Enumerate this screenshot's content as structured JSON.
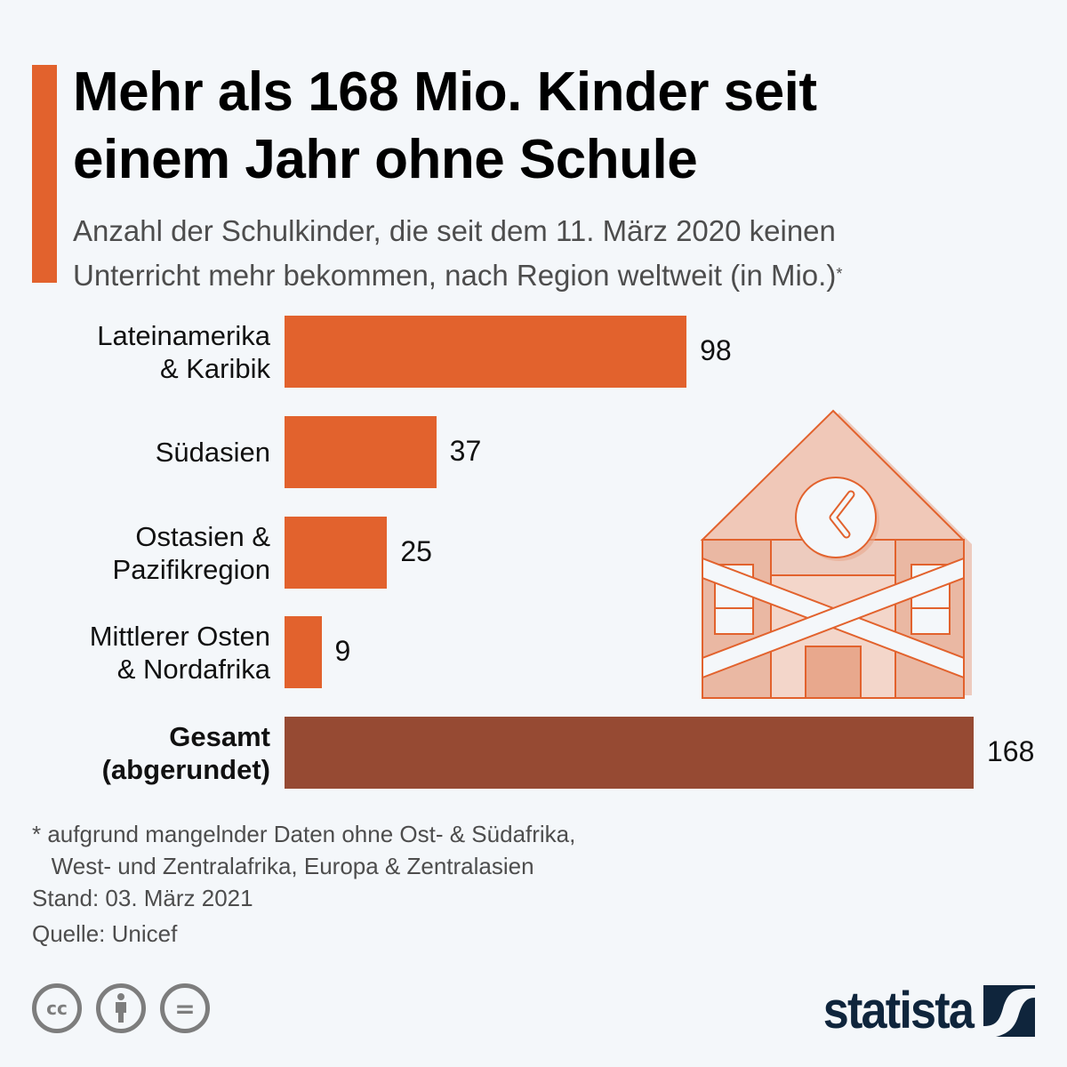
{
  "header": {
    "title_line1": "Mehr als 168 Mio. Kinder seit",
    "title_line2": "einem Jahr ohne Schule",
    "subtitle_line1": "Anzahl der Schulkinder, die seit dem 11. März 2020 keinen",
    "subtitle_line2": "Unterricht mehr bekommen, nach Region weltweit (in Mio.)",
    "subtitle_marker": "*"
  },
  "colors": {
    "accent": "#e2622d",
    "bar": "#e2622d",
    "total_bar": "#964a33",
    "logo": "#0f253c",
    "background": "#f4f7fa"
  },
  "chart_data": {
    "type": "bar",
    "orientation": "horizontal",
    "title": "Mehr als 168 Mio. Kinder seit einem Jahr ohne Schule",
    "subtitle": "Anzahl der Schulkinder, die seit dem 11. März 2020 keinen Unterricht mehr bekommen, nach Region weltweit (in Mio.)*",
    "categories": [
      [
        "Lateinamerika",
        "& Karibik"
      ],
      [
        "Südasien"
      ],
      [
        "Ostasien &",
        "Pazifikregion"
      ],
      [
        "Mittlerer Osten",
        "& Nordafrika"
      ],
      [
        "Gesamt",
        "(abgerundet)"
      ]
    ],
    "values": [
      98,
      37,
      25,
      9,
      168
    ],
    "value_labels": [
      "98",
      "37",
      "25",
      "9",
      "168"
    ],
    "highlight": [
      false,
      false,
      false,
      false,
      true
    ],
    "unit": "Mio.",
    "xlabel": "",
    "ylabel": "",
    "xlim": [
      0,
      168
    ],
    "grid": false,
    "legend": "none"
  },
  "footer": {
    "note_line1": "* aufgrund mangelnder Daten ohne Ost- & Südafrika,",
    "note_line2": "   West- und Zentralafrika, Europa & Zentralasien",
    "stand": "Stand: 03. März 2021",
    "source": "Quelle: Unicef",
    "license_icons": [
      "cc-icon",
      "attribution-icon",
      "no-derivatives-icon"
    ],
    "cc_label": "cc",
    "nd_label": "=",
    "logo_text": "statista"
  }
}
